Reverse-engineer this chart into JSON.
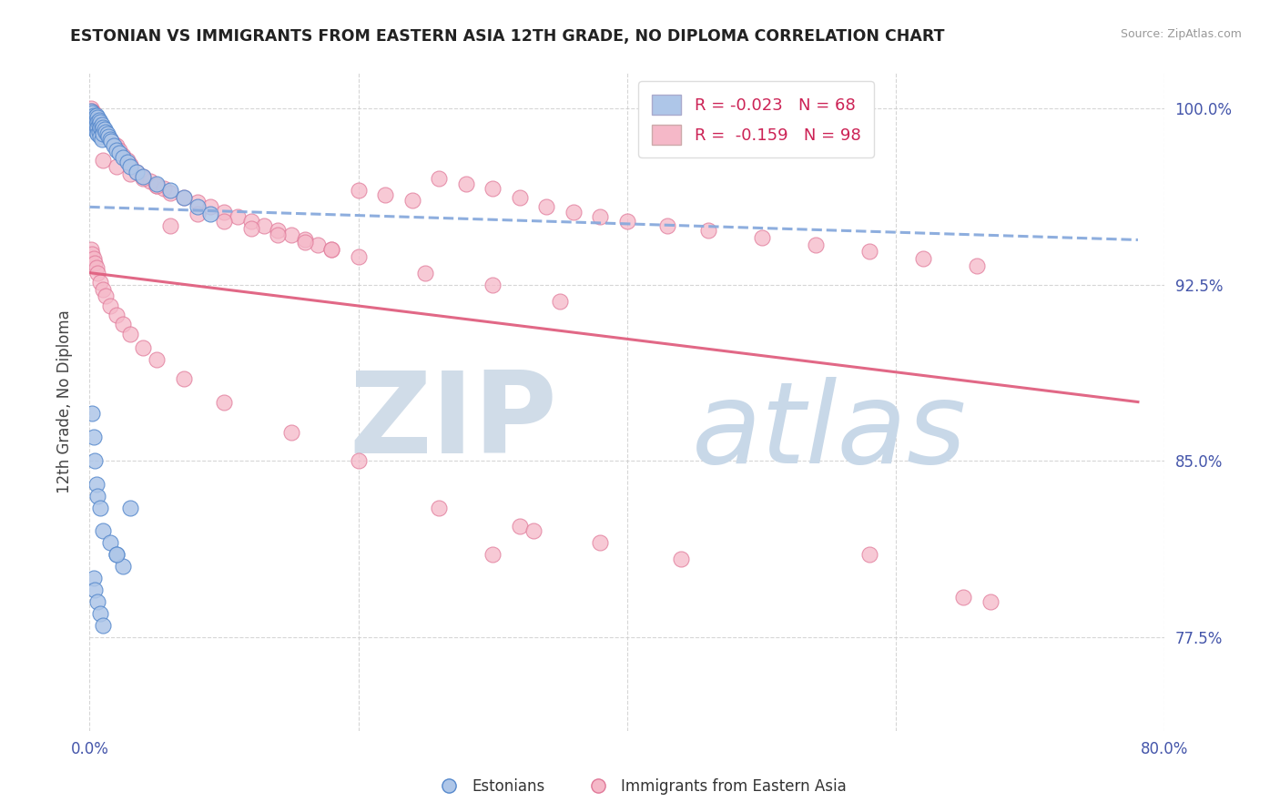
{
  "title": "ESTONIAN VS IMMIGRANTS FROM EASTERN ASIA 12TH GRADE, NO DIPLOMA CORRELATION CHART",
  "source": "Source: ZipAtlas.com",
  "ylabel": "12th Grade, No Diploma",
  "ytick_values": [
    0.775,
    0.85,
    0.925,
    1.0
  ],
  "ytick_labels": [
    "77.5%",
    "85.0%",
    "92.5%",
    "100.0%"
  ],
  "xlim": [
    0.0,
    0.8
  ],
  "ylim": [
    0.735,
    1.015
  ],
  "legend_r_blue": "-0.023",
  "legend_n_blue": "68",
  "legend_r_pink": "-0.159",
  "legend_n_pink": "98",
  "legend_label_blue": "Estonians",
  "legend_label_pink": "Immigrants from Eastern Asia",
  "blue_color": "#aec6e8",
  "pink_color": "#f5b8c8",
  "blue_edge": "#5588cc",
  "pink_edge": "#e07898",
  "trendline_blue_color": "#88aadd",
  "trendline_pink_color": "#e06080",
  "text_color": "#4455aa",
  "background_color": "#ffffff",
  "watermark_zip_color": "#d0dce8",
  "watermark_atlas_color": "#c8d8e8",
  "blue_x": [
    0.001,
    0.001,
    0.001,
    0.002,
    0.002,
    0.002,
    0.002,
    0.003,
    0.003,
    0.003,
    0.004,
    0.004,
    0.004,
    0.005,
    0.005,
    0.005,
    0.005,
    0.006,
    0.006,
    0.006,
    0.006,
    0.007,
    0.007,
    0.007,
    0.008,
    0.008,
    0.008,
    0.009,
    0.009,
    0.009,
    0.01,
    0.01,
    0.011,
    0.012,
    0.013,
    0.014,
    0.015,
    0.016,
    0.018,
    0.02,
    0.022,
    0.025,
    0.028,
    0.03,
    0.035,
    0.04,
    0.05,
    0.06,
    0.07,
    0.08,
    0.09,
    0.002,
    0.003,
    0.004,
    0.005,
    0.006,
    0.008,
    0.01,
    0.015,
    0.02,
    0.025,
    0.003,
    0.004,
    0.006,
    0.008,
    0.01,
    0.02,
    0.03
  ],
  "blue_y": [
    0.997,
    0.999,
    0.995,
    0.998,
    0.996,
    0.994,
    0.993,
    0.997,
    0.995,
    0.992,
    0.996,
    0.994,
    0.991,
    0.997,
    0.995,
    0.993,
    0.99,
    0.996,
    0.994,
    0.992,
    0.989,
    0.995,
    0.993,
    0.99,
    0.994,
    0.992,
    0.988,
    0.993,
    0.991,
    0.987,
    0.992,
    0.989,
    0.991,
    0.99,
    0.989,
    0.988,
    0.987,
    0.986,
    0.984,
    0.982,
    0.981,
    0.979,
    0.977,
    0.975,
    0.973,
    0.971,
    0.968,
    0.965,
    0.962,
    0.958,
    0.955,
    0.87,
    0.86,
    0.85,
    0.84,
    0.835,
    0.83,
    0.82,
    0.815,
    0.81,
    0.805,
    0.8,
    0.795,
    0.79,
    0.785,
    0.78,
    0.81,
    0.83
  ],
  "pink_x": [
    0.001,
    0.002,
    0.003,
    0.004,
    0.005,
    0.006,
    0.007,
    0.008,
    0.009,
    0.01,
    0.012,
    0.015,
    0.018,
    0.02,
    0.022,
    0.025,
    0.028,
    0.03,
    0.035,
    0.04,
    0.045,
    0.05,
    0.055,
    0.06,
    0.07,
    0.08,
    0.09,
    0.1,
    0.11,
    0.12,
    0.13,
    0.14,
    0.15,
    0.16,
    0.17,
    0.18,
    0.2,
    0.22,
    0.24,
    0.26,
    0.28,
    0.3,
    0.32,
    0.34,
    0.36,
    0.38,
    0.4,
    0.43,
    0.46,
    0.5,
    0.54,
    0.58,
    0.62,
    0.66,
    0.01,
    0.02,
    0.03,
    0.04,
    0.05,
    0.06,
    0.08,
    0.1,
    0.12,
    0.14,
    0.16,
    0.18,
    0.2,
    0.25,
    0.3,
    0.35,
    0.001,
    0.002,
    0.003,
    0.004,
    0.005,
    0.006,
    0.008,
    0.01,
    0.012,
    0.015,
    0.02,
    0.025,
    0.03,
    0.04,
    0.05,
    0.07,
    0.1,
    0.15,
    0.2,
    0.26,
    0.32,
    0.38,
    0.44,
    0.33,
    0.3,
    0.58,
    0.65,
    0.67
  ],
  "pink_y": [
    1.0,
    0.999,
    0.998,
    0.997,
    0.996,
    0.995,
    0.994,
    0.993,
    0.992,
    0.991,
    0.989,
    0.987,
    0.985,
    0.984,
    0.982,
    0.98,
    0.978,
    0.976,
    0.973,
    0.971,
    0.969,
    0.967,
    0.966,
    0.964,
    0.962,
    0.96,
    0.958,
    0.956,
    0.954,
    0.952,
    0.95,
    0.948,
    0.946,
    0.944,
    0.942,
    0.94,
    0.965,
    0.963,
    0.961,
    0.97,
    0.968,
    0.966,
    0.962,
    0.958,
    0.956,
    0.954,
    0.952,
    0.95,
    0.948,
    0.945,
    0.942,
    0.939,
    0.936,
    0.933,
    0.978,
    0.975,
    0.972,
    0.97,
    0.967,
    0.95,
    0.955,
    0.952,
    0.949,
    0.946,
    0.943,
    0.94,
    0.937,
    0.93,
    0.925,
    0.918,
    0.94,
    0.938,
    0.936,
    0.934,
    0.932,
    0.93,
    0.926,
    0.923,
    0.92,
    0.916,
    0.912,
    0.908,
    0.904,
    0.898,
    0.893,
    0.885,
    0.875,
    0.862,
    0.85,
    0.83,
    0.822,
    0.815,
    0.808,
    0.82,
    0.81,
    0.81,
    0.792,
    0.79
  ],
  "trend_blue_x0": 0.0,
  "trend_blue_x1": 0.78,
  "trend_blue_y0": 0.958,
  "trend_blue_y1": 0.944,
  "trend_pink_x0": 0.0,
  "trend_pink_x1": 0.78,
  "trend_pink_y0": 0.93,
  "trend_pink_y1": 0.875
}
